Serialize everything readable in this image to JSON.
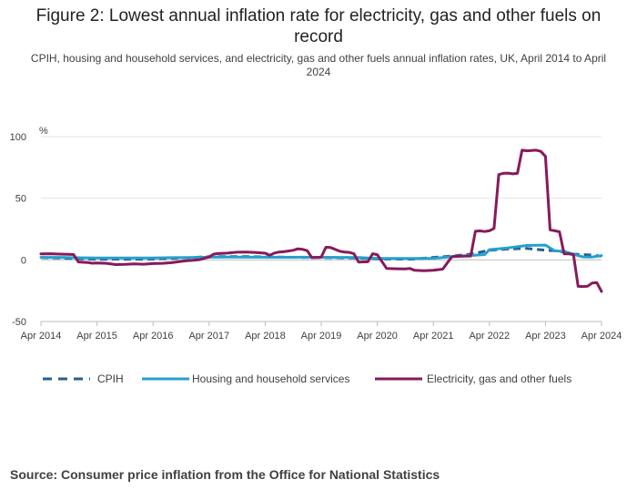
{
  "chart_data": {
    "type": "line",
    "title": "Figure 2: Lowest annual inflation rate for electricity, gas and other fuels on record",
    "subtitle": "CPIH, housing and household services, and electricity, gas and other fuels annual inflation rates, UK, April 2014 to April 2024",
    "ylabel": "%",
    "ylim": [
      -50,
      100
    ],
    "yticks": [
      "100",
      "50",
      "0",
      "-50"
    ],
    "xlim": [
      0,
      120
    ],
    "xticks": [
      "Apr 2014",
      "Apr 2015",
      "Apr 2016",
      "Apr 2017",
      "Apr 2018",
      "Apr 2019",
      "Apr 2020",
      "Apr 2021",
      "Apr 2022",
      "Apr 2023",
      "Apr 2024"
    ],
    "x_unit": "months since Apr 2014",
    "source": "Source: Consumer price inflation from the Office for National Statistics",
    "series": [
      {
        "name": "CPIH",
        "color": "#206095",
        "dashed": true,
        "x": [
          0,
          4,
          8,
          12,
          16,
          20,
          24,
          28,
          32,
          36,
          40,
          44,
          48,
          52,
          56,
          60,
          64,
          68,
          72,
          76,
          80,
          84,
          88,
          92,
          96,
          100,
          104,
          108,
          110,
          112,
          114,
          116,
          118,
          120
        ],
        "values": [
          1.9,
          1.5,
          1.0,
          0.4,
          0.6,
          0.5,
          0.7,
          1.2,
          1.9,
          2.6,
          2.7,
          2.7,
          2.4,
          2.2,
          2.0,
          1.9,
          1.7,
          1.5,
          0.8,
          0.7,
          0.6,
          2.0,
          3.1,
          4.6,
          7.8,
          8.8,
          9.3,
          7.8,
          7.4,
          6.3,
          4.7,
          4.2,
          3.9,
          3.0
        ]
      },
      {
        "name": "Housing and household services",
        "color": "#27a0cc",
        "dashed": false,
        "x": [
          0,
          4,
          8,
          12,
          16,
          20,
          24,
          28,
          32,
          36,
          40,
          44,
          48,
          52,
          56,
          60,
          64,
          68,
          72,
          76,
          80,
          84,
          88,
          92,
          95,
          96,
          100,
          104,
          108,
          110,
          112,
          114,
          116,
          118,
          120
        ],
        "values": [
          2.0,
          2.0,
          1.7,
          1.6,
          1.6,
          1.5,
          1.6,
          1.8,
          1.9,
          2.2,
          2.3,
          2.2,
          2.2,
          2.1,
          2.2,
          2.1,
          2.0,
          1.9,
          1.2,
          1.1,
          1.2,
          1.3,
          2.5,
          3.6,
          4.3,
          8.3,
          9.7,
          11.7,
          12.0,
          7.3,
          7.0,
          4.5,
          2.4,
          2.3,
          3.5
        ]
      },
      {
        "name": "Electricity, gas and other fuels",
        "color": "#871a5b",
        "dashed": false,
        "x": [
          0,
          2,
          4,
          6,
          7,
          8,
          10,
          11,
          12,
          14,
          16,
          18,
          20,
          22,
          24,
          26,
          28,
          30,
          31,
          32,
          34,
          36,
          37,
          38,
          40,
          42,
          44,
          46,
          48,
          49,
          50,
          51,
          52,
          54,
          55,
          56,
          57,
          58,
          60,
          61,
          62,
          64,
          65,
          66,
          67,
          68,
          70,
          71,
          72,
          74,
          76,
          78,
          79,
          80,
          82,
          84,
          86,
          88,
          90,
          92,
          93,
          94,
          95,
          96,
          97,
          98,
          99,
          100,
          101,
          102,
          103,
          104,
          105,
          106,
          107,
          108,
          109,
          110,
          111,
          112,
          113,
          114,
          115,
          116,
          117,
          118,
          119,
          120
        ],
        "values": [
          4.9,
          5.0,
          4.7,
          4.5,
          4.3,
          -1.7,
          -2.1,
          -2.7,
          -2.5,
          -2.8,
          -3.8,
          -3.7,
          -3.2,
          -3.5,
          -3.0,
          -2.8,
          -2.3,
          -1.2,
          -0.8,
          -0.5,
          0.2,
          2.3,
          4.7,
          5.1,
          5.5,
          6.2,
          6.3,
          6.0,
          5.4,
          3.8,
          5.6,
          6.4,
          6.6,
          7.8,
          9.0,
          8.5,
          7.5,
          1.8,
          2.2,
          10.2,
          10.0,
          7.0,
          6.3,
          6.1,
          5.0,
          -1.8,
          -1.5,
          5.0,
          4.2,
          -7.0,
          -7.2,
          -7.3,
          -7.0,
          -8.5,
          -8.8,
          -8.5,
          -7.5,
          2.7,
          3.0,
          3.1,
          23.2,
          23.5,
          23.0,
          23.6,
          25.5,
          69.2,
          70.2,
          70.4,
          69.8,
          70.2,
          89.0,
          88.5,
          88.7,
          89.0,
          88.0,
          84.0,
          24.3,
          23.6,
          22.8,
          5.0,
          4.9,
          4.2,
          -21.5,
          -21.6,
          -21.4,
          -18.8,
          -18.5,
          -25.6
        ]
      }
    ]
  }
}
